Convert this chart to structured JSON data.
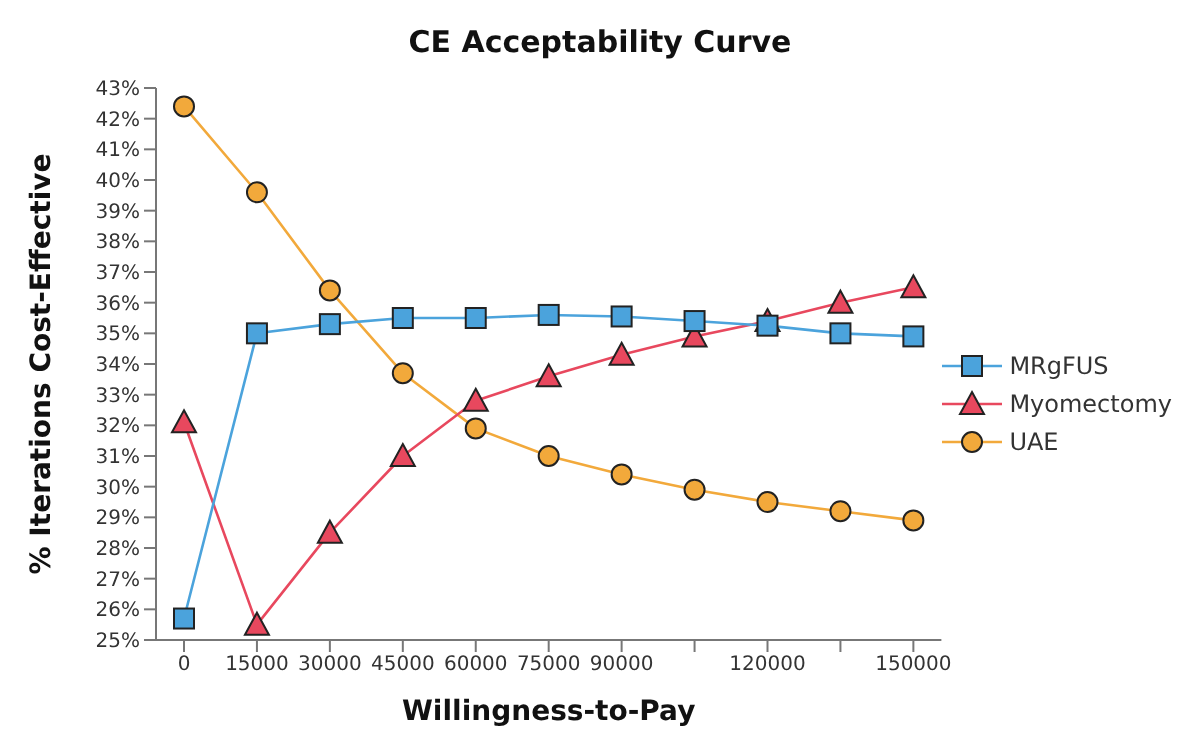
{
  "chart_data": {
    "type": "line",
    "title": "CE Acceptability Curve",
    "xlabel": "Willingness-to-Pay",
    "ylabel": "% Iterations Cost-Effective",
    "categories": [
      "0",
      "15000",
      "30000",
      "45000",
      "60000",
      "75000",
      "90000",
      null,
      "120000",
      null,
      "150000"
    ],
    "series": [
      {
        "name": "MRgFUS",
        "color": "#4ba3dc",
        "marker": "square",
        "values": [
          25.7,
          35.0,
          35.3,
          35.5,
          35.5,
          35.6,
          35.55,
          35.4,
          35.25,
          35.0,
          34.9
        ]
      },
      {
        "name": "Myomectomy",
        "color": "#e8485e",
        "marker": "triangle",
        "values": [
          32.1,
          25.5,
          28.5,
          31.0,
          32.8,
          33.6,
          34.3,
          34.9,
          35.4,
          36.0,
          36.5
        ]
      },
      {
        "name": "UAE",
        "color": "#f2a93b",
        "marker": "circle",
        "values": [
          42.4,
          39.6,
          36.4,
          33.7,
          31.9,
          31.0,
          30.4,
          29.9,
          29.5,
          29.2,
          28.9
        ]
      }
    ],
    "ylim": [
      25,
      43
    ],
    "yticks": [
      {
        "value": 25,
        "label": "25%"
      },
      {
        "value": 26,
        "label": "26%"
      },
      {
        "value": 27,
        "label": "27%"
      },
      {
        "value": 28,
        "label": "28%"
      },
      {
        "value": 29,
        "label": "29%"
      },
      {
        "value": 30,
        "label": "30%"
      },
      {
        "value": 31,
        "label": "31%"
      },
      {
        "value": 32,
        "label": "32%"
      },
      {
        "value": 33,
        "label": "33%"
      },
      {
        "value": 34,
        "label": "34%"
      },
      {
        "value": 35,
        "label": "35%"
      },
      {
        "value": 36,
        "label": "36%"
      },
      {
        "value": 37,
        "label": "37%"
      },
      {
        "value": 38,
        "label": "38%"
      },
      {
        "value": 39,
        "label": "39%"
      },
      {
        "value": 40,
        "label": "40%"
      },
      {
        "value": 41,
        "label": "41%"
      },
      {
        "value": 42,
        "label": "42%"
      },
      {
        "value": 43,
        "label": "43%"
      }
    ],
    "grid": false,
    "legend": "right",
    "line_style": "solid"
  }
}
